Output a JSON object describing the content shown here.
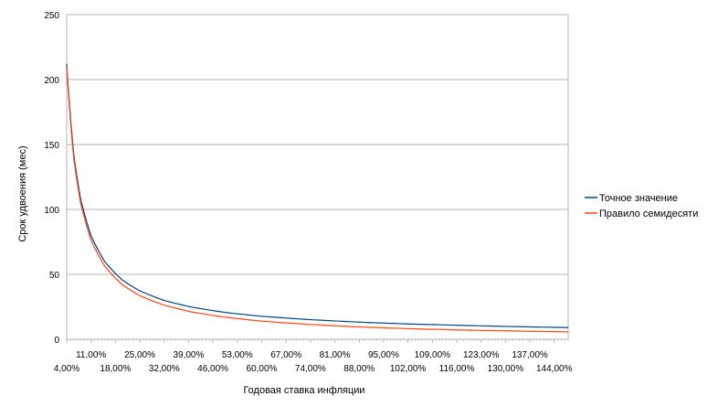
{
  "chart_data": {
    "type": "line",
    "xlabel": "Годовая ставка инфляции",
    "ylabel": "Срок удвоения (мес)",
    "ylim": [
      0,
      250
    ],
    "yticks": [
      0,
      50,
      100,
      150,
      200,
      250
    ],
    "xlim": [
      4,
      148
    ],
    "x_tick_labels": [
      "4,00%",
      "11,00%",
      "18,00%",
      "25,00%",
      "32,00%",
      "39,00%",
      "46,00%",
      "53,00%",
      "60,00%",
      "67,00%",
      "74,00%",
      "81,00%",
      "88,00%",
      "95,00%",
      "102,00%",
      "109,00%",
      "116,00%",
      "123,00%",
      "130,00%",
      "137,00%",
      "144,00%"
    ],
    "x": [
      4,
      6,
      8,
      11,
      15,
      20,
      25,
      32,
      40,
      50,
      60,
      74,
      88,
      102,
      116,
      130,
      148
    ],
    "series": [
      {
        "name": "Точное значение",
        "color": "#004586",
        "values": [
          212.1,
          143.0,
          108.1,
          79.7,
          59.5,
          45.6,
          37.3,
          29.9,
          24.7,
          20.5,
          17.7,
          15.1,
          13.2,
          11.8,
          10.8,
          9.9,
          9.0
        ]
      },
      {
        "name": "Правило семидесяти",
        "color": "#ff420e",
        "values": [
          210.0,
          140.0,
          105.0,
          76.4,
          56.0,
          42.0,
          33.6,
          26.3,
          21.0,
          16.8,
          14.0,
          11.4,
          9.5,
          8.2,
          7.2,
          6.5,
          5.7
        ]
      }
    ],
    "grid": true,
    "legend": "right"
  }
}
